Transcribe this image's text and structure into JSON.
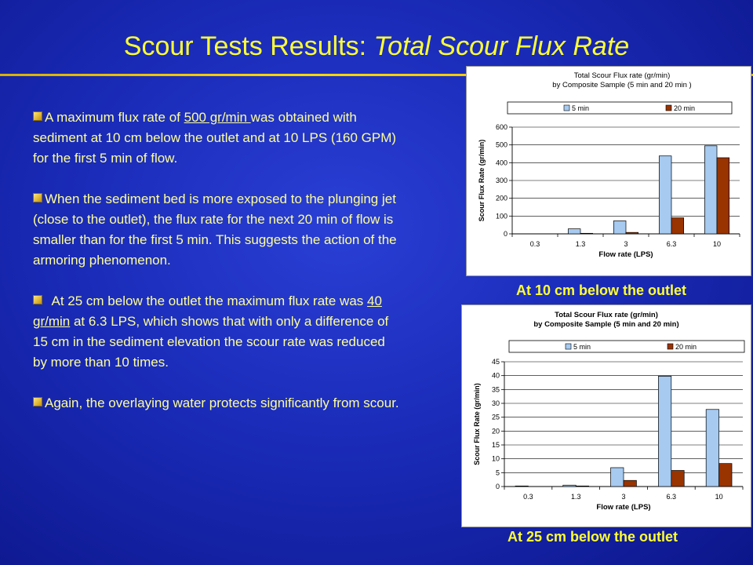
{
  "slide": {
    "title_main": "Scour Tests Results: ",
    "title_sub": "Total Scour Flux Rate"
  },
  "bullets": [
    {
      "parts": [
        "A maximum flux rate of ",
        "500 gr/min ",
        "was obtained with sediment at 10 cm below the outlet and at 10 LPS (160 GPM)  for the first 5 min of flow."
      ]
    },
    {
      "text": "When the sediment bed is more exposed to the plunging jet (close to the outlet), the flux rate for the next 20 min of flow is smaller than for the first 5 min. This suggests the action of the armoring phenomenon."
    },
    {
      "parts": [
        "  At 25 cm below the outlet the maximum flux rate was ",
        "40 gr/min",
        " at 6.3 LPS, which shows that with only a difference of 15 cm in the sediment elevation the scour rate was reduced by more than 10 times."
      ]
    },
    {
      "text": "Again, the overlaying water protects significantly from scour."
    }
  ],
  "captions": {
    "chart1": "At 10 cm below the outlet",
    "chart2": "At 25 cm below the outlet"
  },
  "colors": {
    "series_5min": "#a6caf0",
    "series_20min": "#993300"
  },
  "chart_data": [
    {
      "type": "bar",
      "title": "Total Scour Flux rate (gr/min)",
      "subtitle": "by Composite Sample (5 min and 20 min )",
      "xlabel": "Flow rate (LPS)",
      "ylabel": "Scour Flux Rate (gr/min)",
      "categories": [
        "0.3",
        "1.3",
        "3",
        "6.3",
        "10"
      ],
      "series": [
        {
          "name": "5 min",
          "values": [
            0,
            28,
            73,
            438,
            495
          ]
        },
        {
          "name": "20 min",
          "values": [
            0,
            3,
            8,
            90,
            428
          ]
        }
      ],
      "ylim": [
        0,
        600
      ],
      "yticks": [
        0,
        100,
        200,
        300,
        400,
        500,
        600
      ],
      "legend": "top",
      "title_bold": false
    },
    {
      "type": "bar",
      "title": "Total Scour Flux rate (gr/min)",
      "subtitle": "by Composite Sample (5 min and 20 min)",
      "xlabel": "Flow rate (LPS)",
      "ylabel": "Scour Flux Rate (gr/min)",
      "categories": [
        "0.3",
        "1.3",
        "3",
        "6.3",
        "10"
      ],
      "series": [
        {
          "name": "5 min",
          "values": [
            0.2,
            0.5,
            6.8,
            39.8,
            27.8
          ]
        },
        {
          "name": "20 min",
          "values": [
            0,
            0.2,
            2.2,
            5.8,
            8.3
          ]
        }
      ],
      "ylim": [
        0,
        45
      ],
      "yticks": [
        0,
        5,
        10,
        15,
        20,
        25,
        30,
        35,
        40,
        45
      ],
      "legend": "top",
      "title_bold": true
    }
  ]
}
